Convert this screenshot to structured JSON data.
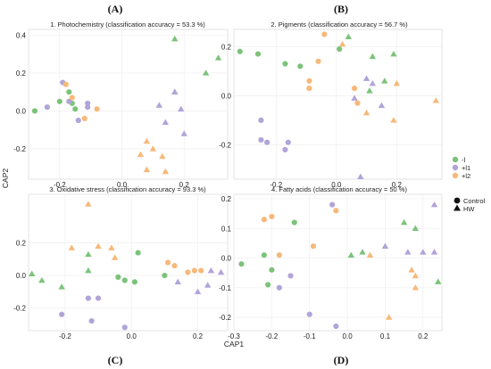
{
  "figure": {
    "letters": [
      "(A)",
      "(B)",
      "(C)",
      "(D)"
    ],
    "xlabel": "CAP1",
    "ylabel": "CAP2"
  },
  "colors": {
    "-l": "#7cc37a",
    "+l1": "#b1a4d8",
    "+l2": "#f6b97a"
  },
  "legend": {
    "color_entries": [
      "-l",
      "+l1",
      "+l2"
    ],
    "shape_entries": [
      "Control",
      "HW"
    ]
  },
  "chart_data": [
    {
      "type": "scatter",
      "title": "1. Photochemistry (classification accuracy = 53.3 %)",
      "xticks": [
        -0.2,
        0.0,
        0.2
      ],
      "yticks": [
        -0.2,
        0.0,
        0.2,
        0.4
      ],
      "xlim": [
        -0.3,
        0.34
      ],
      "ylim": [
        -0.36,
        0.43
      ],
      "points": [
        {
          "x": -0.28,
          "y": 0.0,
          "group": "-l",
          "shape": "circle"
        },
        {
          "x": -0.2,
          "y": 0.05,
          "group": "-l",
          "shape": "circle"
        },
        {
          "x": -0.17,
          "y": 0.1,
          "group": "-l",
          "shape": "circle"
        },
        {
          "x": -0.16,
          "y": 0.04,
          "group": "-l",
          "shape": "circle"
        },
        {
          "x": -0.15,
          "y": 0.01,
          "group": "-l",
          "shape": "circle"
        },
        {
          "x": -0.24,
          "y": 0.02,
          "group": "+l1",
          "shape": "circle"
        },
        {
          "x": -0.19,
          "y": 0.15,
          "group": "+l1",
          "shape": "circle"
        },
        {
          "x": -0.17,
          "y": 0.05,
          "group": "+l1",
          "shape": "circle"
        },
        {
          "x": -0.14,
          "y": -0.05,
          "group": "+l1",
          "shape": "circle"
        },
        {
          "x": -0.11,
          "y": 0.04,
          "group": "+l1",
          "shape": "circle"
        },
        {
          "x": -0.11,
          "y": 0.02,
          "group": "+l1",
          "shape": "circle"
        },
        {
          "x": -0.18,
          "y": 0.14,
          "group": "+l2",
          "shape": "circle"
        },
        {
          "x": -0.16,
          "y": 0.07,
          "group": "+l2",
          "shape": "circle"
        },
        {
          "x": -0.12,
          "y": -0.04,
          "group": "+l2",
          "shape": "circle"
        },
        {
          "x": -0.08,
          "y": 0.01,
          "group": "+l2",
          "shape": "circle"
        },
        {
          "x": 0.17,
          "y": 0.38,
          "group": "-l",
          "shape": "triangle"
        },
        {
          "x": 0.31,
          "y": 0.28,
          "group": "-l",
          "shape": "triangle"
        },
        {
          "x": 0.27,
          "y": 0.2,
          "group": "-l",
          "shape": "triangle"
        },
        {
          "x": 0.17,
          "y": 0.1,
          "group": "-l",
          "shape": "triangle"
        },
        {
          "x": 0.12,
          "y": 0.03,
          "group": "+l1",
          "shape": "triangle"
        },
        {
          "x": 0.17,
          "y": 0.1,
          "group": "+l1",
          "shape": "triangle"
        },
        {
          "x": 0.19,
          "y": 0.01,
          "group": "+l1",
          "shape": "triangle"
        },
        {
          "x": 0.14,
          "y": -0.06,
          "group": "+l1",
          "shape": "triangle"
        },
        {
          "x": 0.2,
          "y": -0.12,
          "group": "+l1",
          "shape": "triangle"
        },
        {
          "x": 0.08,
          "y": -0.16,
          "group": "+l2",
          "shape": "triangle"
        },
        {
          "x": 0.1,
          "y": -0.2,
          "group": "+l2",
          "shape": "triangle"
        },
        {
          "x": 0.06,
          "y": -0.23,
          "group": "+l2",
          "shape": "triangle"
        },
        {
          "x": 0.13,
          "y": -0.24,
          "group": "+l2",
          "shape": "triangle"
        },
        {
          "x": 0.08,
          "y": -0.31,
          "group": "+l2",
          "shape": "triangle"
        },
        {
          "x": 0.14,
          "y": -0.32,
          "group": "+l2",
          "shape": "triangle"
        }
      ]
    },
    {
      "type": "scatter",
      "title": "2. Pigments (classification accuracy = 56.7 %)",
      "xticks": [
        -0.2,
        0.0,
        0.2
      ],
      "yticks": [
        -0.2,
        0.0,
        0.2
      ],
      "xlim": [
        -0.34,
        0.35
      ],
      "ylim": [
        -0.34,
        0.27
      ],
      "points": [
        {
          "x": -0.32,
          "y": 0.18,
          "group": "-l",
          "shape": "circle"
        },
        {
          "x": -0.26,
          "y": 0.17,
          "group": "-l",
          "shape": "circle"
        },
        {
          "x": -0.17,
          "y": 0.13,
          "group": "-l",
          "shape": "circle"
        },
        {
          "x": -0.12,
          "y": 0.12,
          "group": "-l",
          "shape": "circle"
        },
        {
          "x": 0.01,
          "y": 0.19,
          "group": "-l",
          "shape": "circle"
        },
        {
          "x": -0.25,
          "y": -0.1,
          "group": "+l1",
          "shape": "circle"
        },
        {
          "x": -0.25,
          "y": -0.18,
          "group": "+l1",
          "shape": "circle"
        },
        {
          "x": -0.23,
          "y": -0.19,
          "group": "+l1",
          "shape": "circle"
        },
        {
          "x": -0.17,
          "y": -0.22,
          "group": "+l1",
          "shape": "circle"
        },
        {
          "x": -0.16,
          "y": -0.19,
          "group": "+l1",
          "shape": "circle"
        },
        {
          "x": -0.04,
          "y": 0.25,
          "group": "+l2",
          "shape": "circle"
        },
        {
          "x": -0.06,
          "y": 0.14,
          "group": "+l2",
          "shape": "circle"
        },
        {
          "x": -0.09,
          "y": 0.06,
          "group": "+l2",
          "shape": "circle"
        },
        {
          "x": -0.09,
          "y": 0.03,
          "group": "+l2",
          "shape": "circle"
        },
        {
          "x": 0.06,
          "y": 0.03,
          "group": "+l2",
          "shape": "circle"
        },
        {
          "x": 0.07,
          "y": -0.03,
          "group": "+l2",
          "shape": "circle"
        },
        {
          "x": 0.04,
          "y": 0.24,
          "group": "-l",
          "shape": "triangle"
        },
        {
          "x": 0.19,
          "y": 0.17,
          "group": "-l",
          "shape": "triangle"
        },
        {
          "x": 0.12,
          "y": 0.16,
          "group": "-l",
          "shape": "triangle"
        },
        {
          "x": 0.16,
          "y": 0.06,
          "group": "-l",
          "shape": "triangle"
        },
        {
          "x": 0.11,
          "y": 0.02,
          "group": "-l",
          "shape": "triangle"
        },
        {
          "x": 0.1,
          "y": 0.07,
          "group": "+l1",
          "shape": "triangle"
        },
        {
          "x": 0.12,
          "y": 0.05,
          "group": "+l1",
          "shape": "triangle"
        },
        {
          "x": 0.06,
          "y": -0.01,
          "group": "+l1",
          "shape": "triangle"
        },
        {
          "x": 0.15,
          "y": -0.04,
          "group": "+l1",
          "shape": "triangle"
        },
        {
          "x": 0.08,
          "y": -0.33,
          "group": "+l1",
          "shape": "triangle"
        },
        {
          "x": 0.02,
          "y": 0.21,
          "group": "+l2",
          "shape": "triangle"
        },
        {
          "x": 0.2,
          "y": 0.05,
          "group": "+l2",
          "shape": "triangle"
        },
        {
          "x": 0.33,
          "y": -0.02,
          "group": "+l2",
          "shape": "triangle"
        },
        {
          "x": 0.1,
          "y": -0.07,
          "group": "+l2",
          "shape": "triangle"
        },
        {
          "x": 0.19,
          "y": -0.1,
          "group": "+l2",
          "shape": "triangle"
        }
      ]
    },
    {
      "type": "scatter",
      "title": "3. Oxidative stress (classification accuracy = 93.3 %)",
      "xticks": [
        -0.2,
        0.0,
        0.2
      ],
      "yticks": [
        -0.2,
        0.0,
        0.2
      ],
      "xlim": [
        -0.31,
        0.29
      ],
      "ylim": [
        -0.34,
        0.5
      ],
      "points": [
        {
          "x": -0.04,
          "y": -0.01,
          "group": "-l",
          "shape": "circle"
        },
        {
          "x": -0.02,
          "y": -0.03,
          "group": "-l",
          "shape": "circle"
        },
        {
          "x": 0.02,
          "y": 0.14,
          "group": "-l",
          "shape": "circle"
        },
        {
          "x": 0.01,
          "y": -0.04,
          "group": "-l",
          "shape": "circle"
        },
        {
          "x": 0.1,
          "y": 0.0,
          "group": "-l",
          "shape": "circle"
        },
        {
          "x": -0.21,
          "y": -0.24,
          "group": "+l1",
          "shape": "circle"
        },
        {
          "x": -0.13,
          "y": -0.14,
          "group": "+l1",
          "shape": "circle"
        },
        {
          "x": -0.1,
          "y": -0.14,
          "group": "+l1",
          "shape": "circle"
        },
        {
          "x": -0.12,
          "y": -0.28,
          "group": "+l1",
          "shape": "circle"
        },
        {
          "x": -0.02,
          "y": -0.32,
          "group": "+l1",
          "shape": "circle"
        },
        {
          "x": 0.11,
          "y": 0.08,
          "group": "+l2",
          "shape": "circle"
        },
        {
          "x": 0.13,
          "y": 0.06,
          "group": "+l2",
          "shape": "circle"
        },
        {
          "x": 0.17,
          "y": 0.02,
          "group": "+l2",
          "shape": "circle"
        },
        {
          "x": 0.19,
          "y": 0.03,
          "group": "+l2",
          "shape": "circle"
        },
        {
          "x": 0.21,
          "y": 0.03,
          "group": "+l2",
          "shape": "circle"
        },
        {
          "x": -0.3,
          "y": 0.01,
          "group": "-l",
          "shape": "triangle"
        },
        {
          "x": -0.27,
          "y": -0.03,
          "group": "-l",
          "shape": "triangle"
        },
        {
          "x": -0.21,
          "y": -0.07,
          "group": "-l",
          "shape": "triangle"
        },
        {
          "x": -0.13,
          "y": 0.03,
          "group": "-l",
          "shape": "triangle"
        },
        {
          "x": -0.13,
          "y": 0.13,
          "group": "-l",
          "shape": "triangle"
        },
        {
          "x": 0.14,
          "y": -0.04,
          "group": "+l1",
          "shape": "triangle"
        },
        {
          "x": 0.2,
          "y": -0.1,
          "group": "+l1",
          "shape": "triangle"
        },
        {
          "x": 0.23,
          "y": -0.06,
          "group": "+l1",
          "shape": "triangle"
        },
        {
          "x": 0.24,
          "y": 0.03,
          "group": "+l1",
          "shape": "triangle"
        },
        {
          "x": 0.27,
          "y": 0.02,
          "group": "+l1",
          "shape": "triangle"
        },
        {
          "x": -0.13,
          "y": 0.44,
          "group": "+l2",
          "shape": "triangle"
        },
        {
          "x": -0.18,
          "y": 0.17,
          "group": "+l2",
          "shape": "triangle"
        },
        {
          "x": -0.1,
          "y": 0.18,
          "group": "+l2",
          "shape": "triangle"
        },
        {
          "x": -0.06,
          "y": 0.17,
          "group": "+l2",
          "shape": "triangle"
        },
        {
          "x": -0.05,
          "y": 0.11,
          "group": "+l2",
          "shape": "triangle"
        }
      ]
    },
    {
      "type": "scatter",
      "title": "4. Fatty acids (classification accuracy = 50 %)",
      "xticks": [
        -0.3,
        -0.2,
        -0.1,
        0.0,
        0.1,
        0.2
      ],
      "yticks": [
        -0.2,
        -0.1,
        0.0,
        0.1,
        0.2
      ],
      "xlim": [
        -0.3,
        0.25
      ],
      "ylim": [
        -0.245,
        0.215
      ],
      "points": [
        {
          "x": -0.28,
          "y": -0.02,
          "group": "-l",
          "shape": "circle"
        },
        {
          "x": -0.22,
          "y": 0.01,
          "group": "-l",
          "shape": "circle"
        },
        {
          "x": -0.21,
          "y": -0.09,
          "group": "-l",
          "shape": "circle"
        },
        {
          "x": -0.2,
          "y": -0.04,
          "group": "-l",
          "shape": "circle"
        },
        {
          "x": -0.14,
          "y": 0.12,
          "group": "-l",
          "shape": "circle"
        },
        {
          "x": -0.18,
          "y": -0.1,
          "group": "+l1",
          "shape": "circle"
        },
        {
          "x": -0.15,
          "y": -0.06,
          "group": "+l1",
          "shape": "circle"
        },
        {
          "x": -0.1,
          "y": -0.19,
          "group": "+l1",
          "shape": "circle"
        },
        {
          "x": -0.04,
          "y": 0.18,
          "group": "+l1",
          "shape": "circle"
        },
        {
          "x": -0.03,
          "y": -0.23,
          "group": "+l1",
          "shape": "circle"
        },
        {
          "x": -0.22,
          "y": 0.13,
          "group": "+l2",
          "shape": "circle"
        },
        {
          "x": -0.2,
          "y": 0.14,
          "group": "+l2",
          "shape": "circle"
        },
        {
          "x": -0.18,
          "y": 0.01,
          "group": "+l2",
          "shape": "circle"
        },
        {
          "x": -0.09,
          "y": 0.04,
          "group": "+l2",
          "shape": "circle"
        },
        {
          "x": -0.03,
          "y": 0.16,
          "group": "+l2",
          "shape": "circle"
        },
        {
          "x": 0.01,
          "y": 0.01,
          "group": "-l",
          "shape": "triangle"
        },
        {
          "x": 0.04,
          "y": 0.02,
          "group": "-l",
          "shape": "triangle"
        },
        {
          "x": 0.15,
          "y": 0.12,
          "group": "-l",
          "shape": "triangle"
        },
        {
          "x": 0.18,
          "y": 0.1,
          "group": "-l",
          "shape": "triangle"
        },
        {
          "x": 0.24,
          "y": -0.08,
          "group": "-l",
          "shape": "triangle"
        },
        {
          "x": 0.1,
          "y": 0.04,
          "group": "+l1",
          "shape": "triangle"
        },
        {
          "x": 0.16,
          "y": 0.02,
          "group": "+l1",
          "shape": "triangle"
        },
        {
          "x": 0.2,
          "y": 0.02,
          "group": "+l1",
          "shape": "triangle"
        },
        {
          "x": 0.23,
          "y": 0.02,
          "group": "+l1",
          "shape": "triangle"
        },
        {
          "x": 0.23,
          "y": 0.18,
          "group": "+l1",
          "shape": "triangle"
        },
        {
          "x": 0.06,
          "y": 0.01,
          "group": "+l2",
          "shape": "triangle"
        },
        {
          "x": 0.17,
          "y": -0.04,
          "group": "+l2",
          "shape": "triangle"
        },
        {
          "x": 0.18,
          "y": -0.06,
          "group": "+l2",
          "shape": "triangle"
        },
        {
          "x": 0.18,
          "y": -0.1,
          "group": "+l2",
          "shape": "triangle"
        },
        {
          "x": 0.11,
          "y": -0.2,
          "group": "+l2",
          "shape": "triangle"
        }
      ]
    }
  ]
}
